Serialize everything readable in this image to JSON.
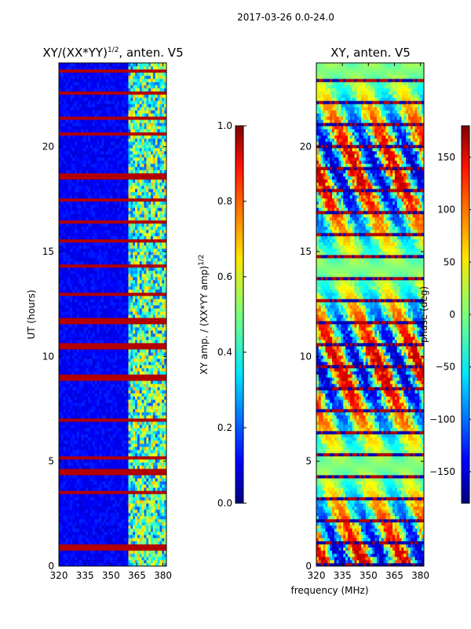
{
  "chart_data": {
    "suptitle": "2017-03-26 0.0-24.0",
    "shared_xlabel": "frequency (MHz)",
    "panels": [
      {
        "type": "heatmap",
        "title_main": "XY/(XX*YY)",
        "title_sup": "1/2",
        "title_tail": ", anten. V5",
        "ylabel": "UT (hours)",
        "xlim": [
          320,
          382
        ],
        "ylim": [
          0,
          24
        ],
        "xticks": [
          320,
          335,
          350,
          365,
          380
        ],
        "yticks": [
          0,
          5,
          10,
          15,
          20
        ],
        "colormap": "jet",
        "colorbar": {
          "label_main": "XY amp. / (XX*YY amp)",
          "label_sup": "1/2",
          "range": [
            0,
            1
          ],
          "ticks": [
            "0.0",
            "0.2",
            "0.4",
            "0.6",
            "0.8",
            "1.0"
          ]
        },
        "description_values": {
          "background_level": 0.12,
          "strong_band_MHz": [
            360,
            382
          ],
          "strong_band_level": 0.45,
          "saturated_rows_UT": [
            0.9,
            3.5,
            4.5,
            5.2,
            7.0,
            9.0,
            10.5,
            11.7,
            13.0,
            14.3,
            15.5,
            16.4,
            17.5,
            18.6,
            20.6,
            21.4,
            22.6,
            23.6
          ]
        }
      },
      {
        "type": "heatmap",
        "title_main": "XY, anten. V5",
        "ylabel": "",
        "xlim": [
          320,
          382
        ],
        "ylim": [
          0,
          24
        ],
        "xticks": [
          320,
          335,
          350,
          365,
          380
        ],
        "yticks": [
          0,
          5,
          10,
          15,
          20
        ],
        "colormap": "jet",
        "colorbar": {
          "label_main": "phase (deg)",
          "range": [
            -180,
            180
          ],
          "ticks": [
            "−150",
            "−100",
            "−50",
            "0",
            "50",
            "100",
            "150"
          ],
          "tick_values": [
            -150,
            -100,
            -50,
            0,
            50,
            100,
            150
          ]
        }
      }
    ]
  }
}
